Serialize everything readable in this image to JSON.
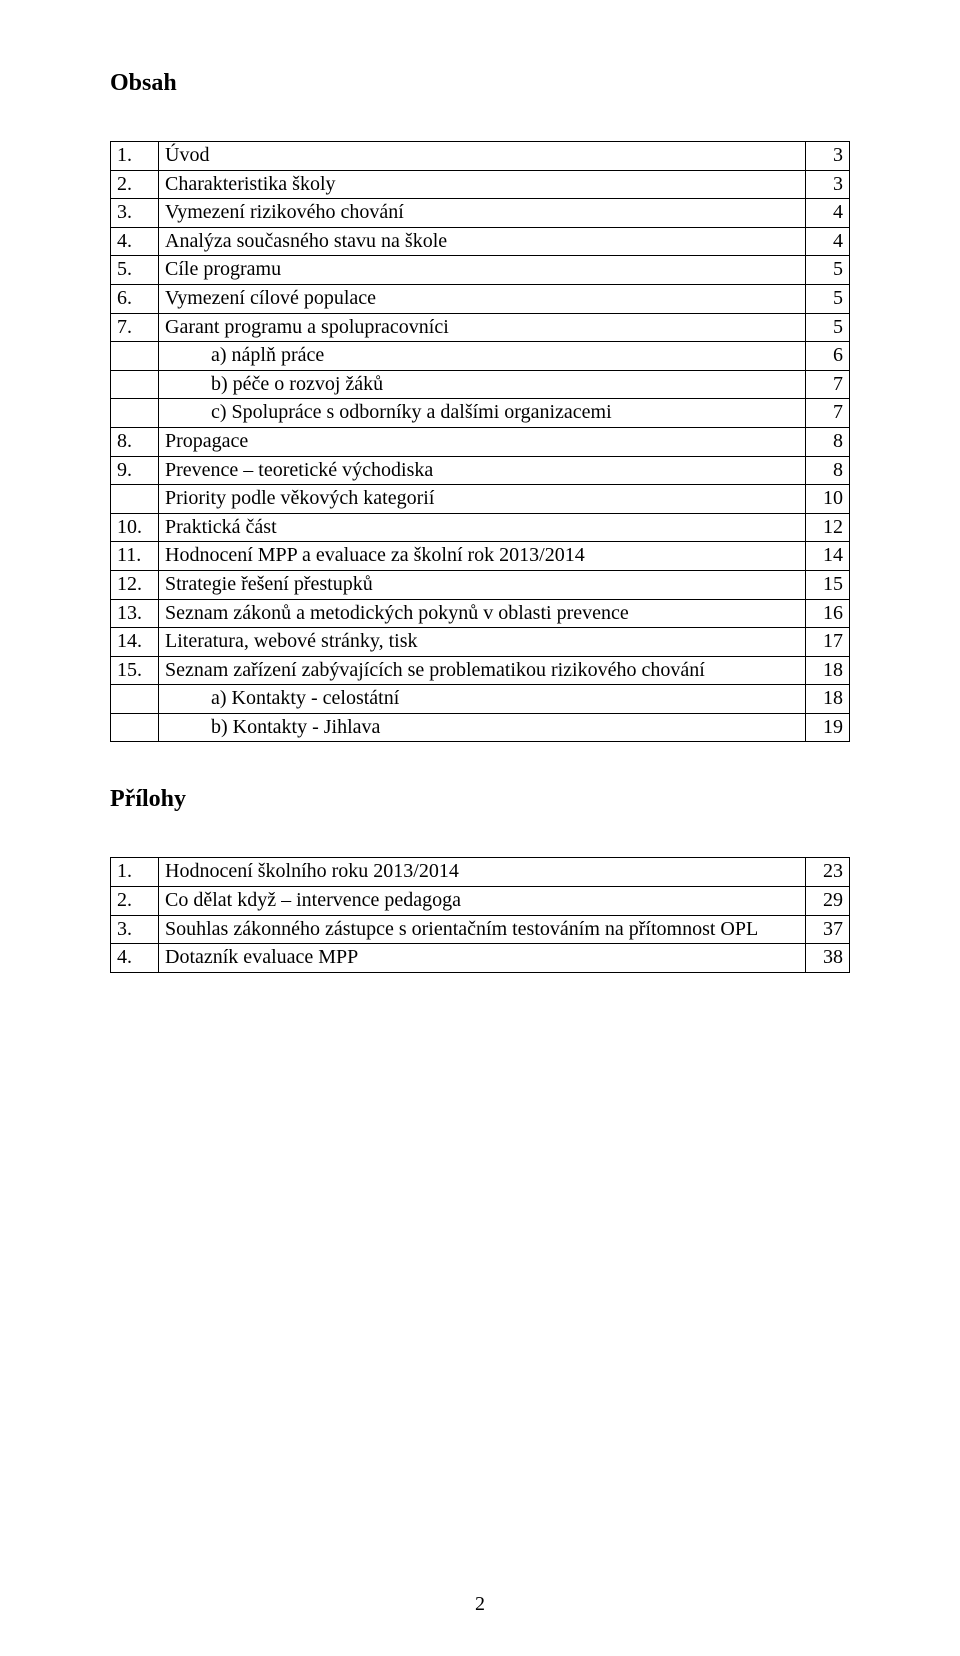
{
  "title": "Obsah",
  "table1": {
    "rows": [
      {
        "num": "1.",
        "text": "Úvod",
        "page": "3"
      },
      {
        "num": "2.",
        "text": "Charakteristika školy",
        "page": "3"
      },
      {
        "num": "3.",
        "text": "Vymezení rizikového chování",
        "page": "4"
      },
      {
        "num": "4.",
        "text": "Analýza současného stavu na škole",
        "page": "4"
      },
      {
        "num": "5.",
        "text": "Cíle programu",
        "page": "5"
      },
      {
        "num": "6.",
        "text": "Vymezení cílové populace",
        "page": "5"
      },
      {
        "num": "7.",
        "text": "Garant programu a spolupracovníci",
        "page": "5"
      },
      {
        "num": "",
        "text": "a) náplň práce",
        "page": "6",
        "sub": true
      },
      {
        "num": "",
        "text": "b) péče o rozvoj žáků",
        "page": "7",
        "sub": true
      },
      {
        "num": "",
        "text": "c) Spolupráce s odborníky a dalšími organizacemi",
        "page": "7",
        "sub": true
      },
      {
        "num": "8.",
        "text": "Propagace",
        "page": "8"
      },
      {
        "num": "9.",
        "text": "Prevence – teoretické východiska",
        "page": "8"
      },
      {
        "num": "",
        "text": "Priority podle věkových kategorií",
        "page": "10"
      },
      {
        "num": "10.",
        "text": "Praktická část",
        "page": "12"
      },
      {
        "num": "11.",
        "text": "Hodnocení MPP a evaluace za školní rok 2013/2014",
        "page": "14"
      },
      {
        "num": "12.",
        "text": "Strategie řešení přestupků",
        "page": "15"
      },
      {
        "num": "13.",
        "text": "Seznam zákonů a metodických pokynů v oblasti prevence",
        "page": "16"
      },
      {
        "num": "14.",
        "text": "Literatura, webové stránky, tisk",
        "page": "17"
      },
      {
        "num": "15.",
        "text": "Seznam zařízení zabývajících se problematikou rizikového chování",
        "page": "18",
        "justify": true
      },
      {
        "num": "",
        "text": "a) Kontakty - celostátní",
        "page": "18",
        "sub": true
      },
      {
        "num": "",
        "text": "b) Kontakty - Jihlava",
        "page": "19",
        "sub": true
      }
    ]
  },
  "subheading": "Přílohy",
  "table2": {
    "rows": [
      {
        "num": "1.",
        "text": "Hodnocení školního roku 2013/2014",
        "page": "23"
      },
      {
        "num": "2.",
        "text": "Co dělat když – intervence pedagoga",
        "page": "29"
      },
      {
        "num": "3.",
        "text": "Souhlas zákonného zástupce s orientačním testováním na přítomnost OPL",
        "page": "37",
        "justify": true
      },
      {
        "num": "4.",
        "text": "Dotazník evaluace MPP",
        "page": "38"
      }
    ]
  },
  "pageNumber": "2",
  "colors": {
    "text": "#000000",
    "background": "#ffffff",
    "border": "#000000"
  },
  "layout": {
    "pageWidth": 960,
    "pageHeight": 1537,
    "colNumWidth": 48,
    "colPageWidth": 44,
    "font": "Times New Roman",
    "baseFontSize": 20,
    "titleFontSize": 24
  }
}
